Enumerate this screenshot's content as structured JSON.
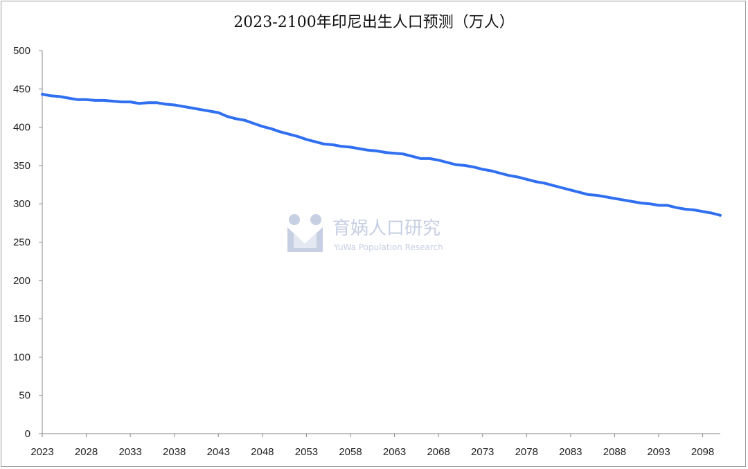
{
  "chart_data": {
    "type": "line",
    "title": "2023-2100年印尼出生人口预测（万人）",
    "xlabel": "",
    "ylabel": "",
    "ylim": [
      0,
      500
    ],
    "yticks": [
      0,
      50,
      100,
      150,
      200,
      250,
      300,
      350,
      400,
      450,
      500
    ],
    "xlim": [
      2023,
      2100
    ],
    "xticks": [
      2023,
      2028,
      2033,
      2038,
      2043,
      2048,
      2053,
      2058,
      2063,
      2068,
      2073,
      2078,
      2083,
      2088,
      2093,
      2098
    ],
    "grid": false,
    "legend": "none",
    "line_color": "#2f6ff0",
    "series": [
      {
        "x": [
          2023,
          2024,
          2025,
          2026,
          2027,
          2028,
          2029,
          2030,
          2031,
          2032,
          2033,
          2034,
          2035,
          2036,
          2037,
          2038,
          2039,
          2040,
          2041,
          2042,
          2043,
          2044,
          2045,
          2046,
          2047,
          2048,
          2049,
          2050,
          2051,
          2052,
          2053,
          2054,
          2055,
          2056,
          2057,
          2058,
          2059,
          2060,
          2061,
          2062,
          2063,
          2064,
          2065,
          2066,
          2067,
          2068,
          2069,
          2070,
          2071,
          2072,
          2073,
          2074,
          2075,
          2076,
          2077,
          2078,
          2079,
          2080,
          2081,
          2082,
          2083,
          2084,
          2085,
          2086,
          2087,
          2088,
          2089,
          2090,
          2091,
          2092,
          2093,
          2094,
          2095,
          2096,
          2097,
          2098,
          2099,
          2100
        ],
        "values": [
          443,
          441,
          440,
          438,
          436,
          436,
          435,
          435,
          434,
          433,
          433,
          431,
          432,
          432,
          430,
          429,
          427,
          425,
          423,
          421,
          419,
          414,
          411,
          409,
          405,
          401,
          398,
          394,
          391,
          388,
          384,
          381,
          378,
          377,
          375,
          374,
          372,
          370,
          369,
          367,
          366,
          365,
          362,
          359,
          359,
          357,
          354,
          351,
          350,
          348,
          345,
          343,
          340,
          337,
          335,
          332,
          329,
          327,
          324,
          321,
          318,
          315,
          312,
          311,
          309,
          307,
          305,
          303,
          301,
          300,
          298,
          298,
          295,
          293,
          292,
          290,
          288,
          285
        ]
      }
    ]
  },
  "watermark": {
    "name": "育娲人口研究",
    "subtitle": "YuWa Population Research",
    "color": "#c7cfe3"
  }
}
